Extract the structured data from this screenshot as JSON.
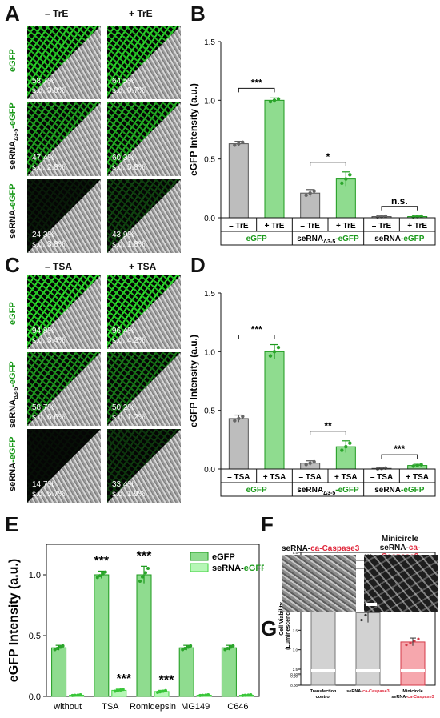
{
  "panels": {
    "A": {
      "letter": "A",
      "col_headers": [
        "– TrE",
        "+ TrE"
      ],
      "rows": [
        {
          "label": "eGFP",
          "left": [
            "58.7%",
            "s.d. 3.0%"
          ],
          "right": [
            "64.5%",
            "s.d. 0.7%"
          ]
        },
        {
          "label_pre": "seRNA",
          "label_sub": "Δ3-5",
          "label_post": "-eGFP",
          "left": [
            "47.4%",
            "s.d. 2.8%"
          ],
          "right": [
            "60.3%",
            "s.d. 5.8%"
          ]
        },
        {
          "label_pre": "seRNA",
          "label_post": "-eGFP",
          "left": [
            "24.3%",
            "s.d. 3.8%"
          ],
          "right": [
            "43.9%",
            "s.d. 1.8%"
          ]
        }
      ]
    },
    "B": {
      "letter": "B"
    },
    "C": {
      "letter": "C",
      "col_headers": [
        "– TSA",
        "+ TSA"
      ],
      "rows": [
        {
          "label": "eGFP",
          "left": [
            "94.8%",
            "s.d. 3.4%"
          ],
          "right": [
            "96.4%",
            "s.d. 4.2%"
          ]
        },
        {
          "label_pre": "seRNA",
          "label_sub": "Δ3-5",
          "label_post": "-eGFP",
          "left": [
            "58.7%",
            "s.d. 6.6%"
          ],
          "right": [
            "50.2%",
            "s.d. 1.2%"
          ]
        },
        {
          "label_pre": "seRNA",
          "label_post": "-eGFP",
          "left": [
            "14.7%",
            "s.d. 5.7%"
          ],
          "right": [
            "33.4%",
            "s.d. 1.9%"
          ]
        }
      ]
    },
    "D": {
      "letter": "D"
    },
    "E": {
      "letter": "E"
    },
    "F": {
      "letter": "F",
      "left_title_pre": "seRNA-",
      "left_title_red": "ca-Caspase3",
      "right_title_line1": "Minicircle",
      "right_title_pre": "seRNA-",
      "right_title_red": "ca-Caspase3"
    },
    "G": {
      "letter": "G"
    }
  },
  "chart_data": [
    {
      "id": "B",
      "type": "bar",
      "ylabel": "eGFP Intensity (a.u.)",
      "ylim": [
        0,
        1.5
      ],
      "yticks": [
        "0.0",
        "0.5",
        "1.0",
        "1.5"
      ],
      "categories": [
        "– TrE",
        "+ TrE",
        "– TrE",
        "+ TrE",
        "– TrE",
        "+ TrE"
      ],
      "groups": [
        {
          "pre": "eGFP",
          "sub": "",
          "post": ""
        },
        {
          "pre": "seRNA",
          "sub": "Δ3-5",
          "post": "-eGFP"
        },
        {
          "pre": "seRNA",
          "sub": "",
          "post": "-eGFP"
        }
      ],
      "values": [
        0.63,
        1.0,
        0.21,
        0.33,
        0.01,
        0.01
      ],
      "errors": [
        0.02,
        0.02,
        0.03,
        0.06,
        0.005,
        0.005
      ],
      "significance": [
        "***",
        "*",
        "n.s."
      ]
    },
    {
      "id": "D",
      "type": "bar",
      "ylabel": "eGFP Intensity (a.u.)",
      "ylim": [
        0,
        1.5
      ],
      "yticks": [
        "0.0",
        "0.5",
        "1.0",
        "1.5"
      ],
      "categories": [
        "– TSA",
        "+ TSA",
        "– TSA",
        "+ TSA",
        "– TSA",
        "+ TSA"
      ],
      "groups": [
        {
          "pre": "eGFP",
          "sub": "",
          "post": ""
        },
        {
          "pre": "seRNA",
          "sub": "Δ3-5",
          "post": "-eGFP"
        },
        {
          "pre": "seRNA",
          "sub": "",
          "post": "-eGFP"
        }
      ],
      "values": [
        0.43,
        1.0,
        0.05,
        0.19,
        0.005,
        0.03
      ],
      "errors": [
        0.03,
        0.06,
        0.02,
        0.05,
        0.005,
        0.01
      ],
      "significance": [
        "***",
        "**",
        "***"
      ]
    },
    {
      "id": "E",
      "type": "bar",
      "ylabel": "eGFP Intensity (a.u.)",
      "ylim": [
        0,
        1.25
      ],
      "yticks": [
        "0.0",
        "0.5",
        "1.0"
      ],
      "categories": [
        "without",
        "TSA",
        "Romidepsin",
        "MG149",
        "C646"
      ],
      "series": [
        {
          "name": "eGFP",
          "values": [
            0.4,
            1.0,
            1.0,
            0.4,
            0.4
          ],
          "errors": [
            0.02,
            0.03,
            0.07,
            0.02,
            0.02
          ]
        },
        {
          "name_pre": "seRNA-",
          "name_post": "eGFP",
          "values": [
            0.01,
            0.05,
            0.04,
            0.01,
            0.01
          ],
          "errors": [
            0.004,
            0.01,
            0.01,
            0.004,
            0.004
          ]
        }
      ],
      "annotations": [
        "***",
        "***",
        "***",
        "***"
      ]
    },
    {
      "id": "G",
      "type": "bar",
      "ylabel_line1": "Cell Viability",
      "ylabel_line2": "(Luminescence in RLU)",
      "yticks": [
        "0.00",
        "0.50",
        "0.60",
        "2.5",
        "3.0",
        "3.5",
        "4.0",
        "4.5",
        "5.0",
        "5.5"
      ],
      "categories": [
        {
          "line1": "Transfection",
          "line2": "control",
          "red": ""
        },
        {
          "line1": "seRNA-",
          "line2": "",
          "red": "ca-Caspase3"
        },
        {
          "line1": "Minicircle",
          "line2": "seRNA-",
          "red": "ca-Caspase3"
        }
      ],
      "values": [
        4.65,
        3.95,
        3.2
      ],
      "errors": [
        0.45,
        0.25,
        0.1
      ],
      "significance": [
        "**",
        "***",
        "***"
      ]
    }
  ]
}
